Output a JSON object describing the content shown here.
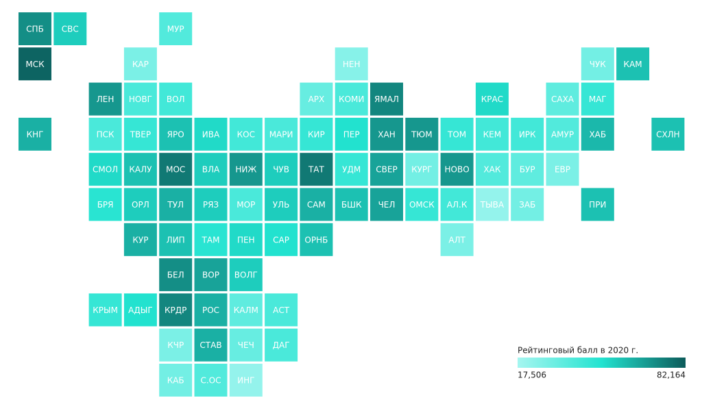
{
  "regions": [
    {
      "label": "СПБ",
      "value": 70000
    },
    {
      "label": "СВС",
      "value": 55000
    },
    {
      "label": "МУР",
      "value": 38000
    },
    {
      "label": "МСК",
      "value": 80000
    },
    {
      "label": "КАР",
      "value": 28000
    },
    {
      "label": "НЕН",
      "value": 25000
    },
    {
      "label": "ЧУК",
      "value": 30000
    },
    {
      "label": "КАМ",
      "value": 58000
    },
    {
      "label": "ЛЕН",
      "value": 68000
    },
    {
      "label": "НОВГ",
      "value": 40000
    },
    {
      "label": "ВОЛ",
      "value": 42000
    },
    {
      "label": "АРХ",
      "value": 33000
    },
    {
      "label": "КОМИ",
      "value": 40000
    },
    {
      "label": "ЯМАЛ",
      "value": 72000
    },
    {
      "label": "КРАС",
      "value": 52000
    },
    {
      "label": "САХА",
      "value": 35000
    },
    {
      "label": "МАГ",
      "value": 45000
    },
    {
      "label": "КНГ",
      "value": 62000
    },
    {
      "label": "ПСК",
      "value": 40000
    },
    {
      "label": "ТВЕР",
      "value": 45000
    },
    {
      "label": "ЯРО",
      "value": 58000
    },
    {
      "label": "ИВА",
      "value": 52000
    },
    {
      "label": "КОС",
      "value": 42000
    },
    {
      "label": "МАРИ",
      "value": 40000
    },
    {
      "label": "КИР",
      "value": 45000
    },
    {
      "label": "ПЕР",
      "value": 50000
    },
    {
      "label": "ХАН",
      "value": 68000
    },
    {
      "label": "ТЮМ",
      "value": 68000
    },
    {
      "label": "ТОМ",
      "value": 45000
    },
    {
      "label": "КЕМ",
      "value": 42000
    },
    {
      "label": "ИРК",
      "value": 42000
    },
    {
      "label": "АМУР",
      "value": 38000
    },
    {
      "label": "ХАБ",
      "value": 60000
    },
    {
      "label": "СХЛН",
      "value": 58000
    },
    {
      "label": "СМОЛ",
      "value": 52000
    },
    {
      "label": "КАЛУ",
      "value": 58000
    },
    {
      "label": "МОС",
      "value": 75000
    },
    {
      "label": "ВЛА",
      "value": 55000
    },
    {
      "label": "НИЖ",
      "value": 68000
    },
    {
      "label": "ЧУВ",
      "value": 55000
    },
    {
      "label": "ТАТ",
      "value": 75000
    },
    {
      "label": "УДМ",
      "value": 45000
    },
    {
      "label": "СВЕР",
      "value": 65000
    },
    {
      "label": "КУРГ",
      "value": 30000
    },
    {
      "label": "НОВО",
      "value": 68000
    },
    {
      "label": "ХАК",
      "value": 38000
    },
    {
      "label": "БУР",
      "value": 35000
    },
    {
      "label": "ЕВР",
      "value": 28000
    },
    {
      "label": "БРЯ",
      "value": 48000
    },
    {
      "label": "ОРЛ",
      "value": 55000
    },
    {
      "label": "ТУЛ",
      "value": 62000
    },
    {
      "label": "РЯЗ",
      "value": 55000
    },
    {
      "label": "МОР",
      "value": 40000
    },
    {
      "label": "УЛЬ",
      "value": 55000
    },
    {
      "label": "САМ",
      "value": 62000
    },
    {
      "label": "БШК",
      "value": 58000
    },
    {
      "label": "ЧЕЛ",
      "value": 65000
    },
    {
      "label": "ОМСК",
      "value": 45000
    },
    {
      "label": "АЛ.К",
      "value": 42000
    },
    {
      "label": "ТЫВА",
      "value": 22000
    },
    {
      "label": "ЗАБ",
      "value": 30000
    },
    {
      "label": "ПРИ",
      "value": 58000
    },
    {
      "label": "КУР",
      "value": 62000
    },
    {
      "label": "ЛИП",
      "value": 58000
    },
    {
      "label": "ТАМ",
      "value": 48000
    },
    {
      "label": "ПЕН",
      "value": 52000
    },
    {
      "label": "САР",
      "value": 50000
    },
    {
      "label": "ОРНБ",
      "value": 58000
    },
    {
      "label": "АЛТ",
      "value": 28000
    },
    {
      "label": "БЕЛ",
      "value": 70000
    },
    {
      "label": "ВОР",
      "value": 65000
    },
    {
      "label": "ВОЛГ",
      "value": 55000
    },
    {
      "label": "КРЫМ",
      "value": 45000
    },
    {
      "label": "АДЫГ",
      "value": 50000
    },
    {
      "label": "КРДР",
      "value": 72000
    },
    {
      "label": "РОС",
      "value": 62000
    },
    {
      "label": "КАЛМ",
      "value": 35000
    },
    {
      "label": "АСТ",
      "value": 40000
    },
    {
      "label": "КЧР",
      "value": 28000
    },
    {
      "label": "СТАВ",
      "value": 62000
    },
    {
      "label": "ЧЕЧ",
      "value": 33000
    },
    {
      "label": "ДАГ",
      "value": 40000
    },
    {
      "label": "КАБ",
      "value": 30000
    },
    {
      "label": "С.ОС",
      "value": 38000
    },
    {
      "label": "ИНГ",
      "value": 22000
    }
  ],
  "legend": {
    "title": "Рейтинговый балл в 2020 г.",
    "min": {
      "value": 17506,
      "label": "17,506"
    },
    "max": {
      "value": 82164,
      "label": "82,164"
    },
    "colors": [
      "#a6f6f0",
      "#22e3d0",
      "#0c5b5a"
    ]
  }
}
